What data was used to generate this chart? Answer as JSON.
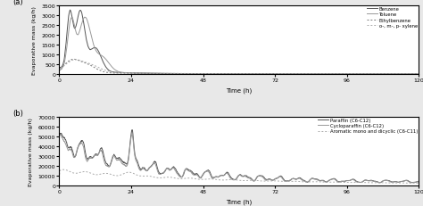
{
  "panel_a": {
    "label": "(a)",
    "ylabel": "Evaporative mass (kg/h)",
    "xlabel": "Time (h)",
    "xlim": [
      0,
      120
    ],
    "ylim": [
      0,
      3500
    ],
    "yticks": [
      0,
      500,
      1000,
      1500,
      2000,
      2500,
      3000,
      3500
    ],
    "xticks": [
      0,
      24,
      48,
      72,
      96,
      120
    ],
    "legend": [
      "Benzene",
      "Toluene",
      "Ethylbenzene",
      "o-, m-, p- xylene"
    ],
    "colors_a": [
      "#555555",
      "#999999",
      "#777777",
      "#aaaaaa"
    ],
    "styles_a": [
      "-",
      "-",
      ":",
      ":"
    ]
  },
  "panel_b": {
    "label": "(b)",
    "ylabel": "Evaporative mass (kg/h)",
    "xlabel": "Time (h)",
    "xlim": [
      0,
      120
    ],
    "ylim": [
      0,
      70000
    ],
    "yticks": [
      0,
      10000,
      20000,
      30000,
      40000,
      50000,
      60000,
      70000
    ],
    "xticks": [
      0,
      24,
      48,
      72,
      96,
      120
    ],
    "legend": [
      "Paraffin (C6-C12)",
      "Cycloparaffin (C6-C12)",
      "Aromatic mono and dicyclic (C6-C11)"
    ],
    "colors_b": [
      "#555555",
      "#999999",
      "#aaaaaa"
    ],
    "styles_b": [
      "-",
      "-",
      ":"
    ]
  },
  "fig_background": "#e8e8e8",
  "axes_background": "#ffffff"
}
